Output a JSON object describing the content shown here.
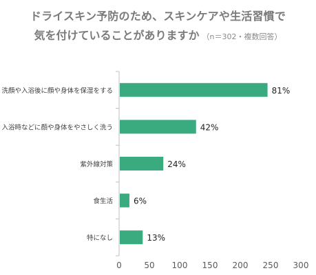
{
  "chart_data": {
    "type": "bar",
    "orientation": "horizontal",
    "title_line1": "ドライスキン予防のため、スキンケアや生活習慣で",
    "title_line2": "気を付けていることがありますか",
    "title_note": "（n＝302・複数回答）",
    "categories": [
      "洗顔や入浴後に顔や身体を保湿をする",
      "入浴時などに顔や身体をやさしく洗う",
      "紫外線対策",
      "食生活",
      "特になし"
    ],
    "values": [
      245,
      127,
      73,
      17,
      39
    ],
    "data_labels": [
      "81%",
      "42%",
      "24%",
      "6%",
      "13%"
    ],
    "xlim": [
      0,
      300
    ],
    "xticks": [
      "0",
      "50",
      "100",
      "150",
      "200",
      "250",
      "300"
    ],
    "grid": false,
    "bar_color": "#3aab7e"
  }
}
